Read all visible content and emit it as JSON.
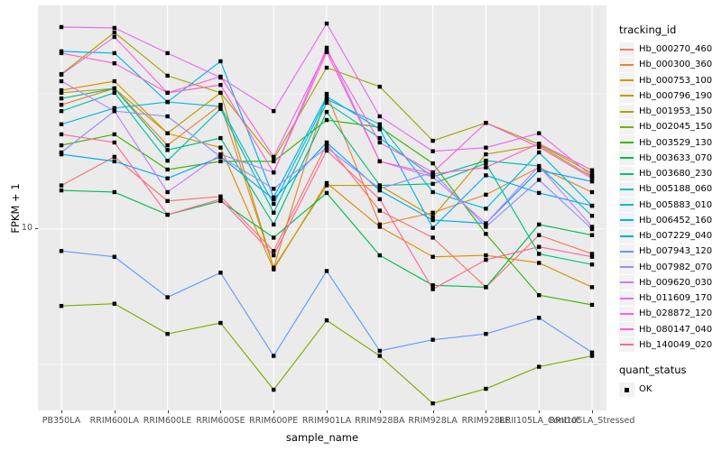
{
  "chart_data": {
    "type": "line",
    "title": "",
    "xlabel": "sample_name",
    "ylabel": "FPKM + 1",
    "y_scale": "log10",
    "y_ticks": [
      "10"
    ],
    "grid": true,
    "panel_background": "#EBEBEB",
    "gridline_color": "#FFFFFF",
    "point_shape": "filled-square",
    "point_color": "#000000",
    "legend": {
      "position": "right",
      "color_title": "tracking_id",
      "shape_title": "quant_status",
      "shape_items": [
        {
          "label": "OK"
        }
      ]
    },
    "categories": [
      "PB350LA",
      "RRIM600LA",
      "RRIM600LE",
      "RRIM600SE",
      "RRIM600PE",
      "RRIM901LA",
      "RRIM928BA",
      "RRIM928LA",
      "RRIM928LE",
      "RRII105LA_Control",
      "RRII105LA_Stressed"
    ],
    "series": [
      {
        "name": "Hb_000270_460",
        "color": "#F8766D",
        "values": [
          14.5,
          18.5,
          12.7,
          13.2,
          8.3,
          20.6,
          11.7,
          9.3,
          6.1,
          9.5,
          8.1
        ]
      },
      {
        "name": "Hb_000300_360",
        "color": "#EA8331",
        "values": [
          28.8,
          33.1,
          20.4,
          28.8,
          7.2,
          31.6,
          10.4,
          11.5,
          13.4,
          16.9,
          13.7
        ]
      },
      {
        "name": "Hb_000753_100",
        "color": "#D89000",
        "values": [
          32.6,
          35.2,
          22.6,
          20.0,
          7.1,
          14.8,
          10.2,
          7.9,
          8.0,
          7.5,
          6.1
        ]
      },
      {
        "name": "Hb_000796_190",
        "color": "#C09B00",
        "values": [
          31.9,
          33.1,
          22.6,
          31.9,
          7.2,
          14.5,
          14.5,
          11.1,
          18.9,
          20.4,
          15.6
        ]
      },
      {
        "name": "Hb_001953_150",
        "color": "#A3A500",
        "values": [
          37.4,
          53.3,
          36.9,
          31.9,
          18.1,
          39.5,
          33.6,
          21.2,
          24.7,
          20.6,
          16.1
        ]
      },
      {
        "name": "Hb_002045_150",
        "color": "#7CAE00",
        "values": [
          5.2,
          5.3,
          4.1,
          4.5,
          2.55,
          4.6,
          3.4,
          2.27,
          2.57,
          3.1,
          3.4
        ]
      },
      {
        "name": "Hb_003529_130",
        "color": "#39B600",
        "values": [
          20.4,
          22.4,
          16.6,
          17.8,
          17.8,
          25.3,
          23.8,
          17.5,
          9.6,
          5.7,
          5.25
        ]
      },
      {
        "name": "Hb_003633_070",
        "color": "#00BB4E",
        "values": [
          13.9,
          13.7,
          11.3,
          12.7,
          9.3,
          13.6,
          8.0,
          6.2,
          6.1,
          10.4,
          9.5
        ]
      },
      {
        "name": "Hb_003680_230",
        "color": "#00C081",
        "values": [
          30.4,
          33.1,
          19.6,
          21.7,
          10.4,
          27.1,
          14.5,
          14.7,
          17.5,
          8.1,
          7.4
        ]
      },
      {
        "name": "Hb_005188_060",
        "color": "#00C0AF",
        "values": [
          27.3,
          31.9,
          17.9,
          27.8,
          11.5,
          29.3,
          21.7,
          15.6,
          17.9,
          17.1,
          11.2
        ]
      },
      {
        "name": "Hb_005883_010",
        "color": "#00BCD8",
        "values": [
          24.4,
          28.0,
          29.5,
          28.4,
          12.4,
          30.2,
          24.4,
          13.7,
          11.9,
          19.2,
          12.2
        ]
      },
      {
        "name": "Hb_006452_160",
        "color": "#00B0F6",
        "values": [
          45.4,
          44.7,
          29.5,
          41.7,
          13.1,
          30.9,
          23.4,
          10.1,
          15.8,
          13.6,
          12.2
        ]
      },
      {
        "name": "Hb_007229_040",
        "color": "#00A5FF",
        "values": [
          18.9,
          17.8,
          15.4,
          18.5,
          12.9,
          20.9,
          13.9,
          10.8,
          10.5,
          16.5,
          15.0
        ]
      },
      {
        "name": "Hb_007943_120",
        "color": "#619CFF",
        "values": [
          8.3,
          7.9,
          5.6,
          6.9,
          3.4,
          7.0,
          3.55,
          3.9,
          4.1,
          4.7,
          3.5
        ]
      },
      {
        "name": "Hb_007982_070",
        "color": "#9590FF",
        "values": [
          19.2,
          27.3,
          26.1,
          18.5,
          14.1,
          20.0,
          14.1,
          16.2,
          10.2,
          15.2,
          10.0
        ]
      },
      {
        "name": "Hb_009620_030",
        "color": "#C77CFF",
        "values": [
          35.2,
          27.3,
          13.7,
          18.9,
          16.2,
          46.8,
          17.8,
          15.6,
          10.5,
          17.1,
          10.2
        ]
      },
      {
        "name": "Hb_011609_170",
        "color": "#E76BF3",
        "values": [
          55.8,
          55.4,
          44.7,
          36.3,
          27.3,
          57.5,
          26.1,
          19.4,
          20.0,
          22.6,
          15.7
        ]
      },
      {
        "name": "Hb_028872_120",
        "color": "#FA62DB",
        "values": [
          37.2,
          51.3,
          31.9,
          36.6,
          18.5,
          45.7,
          20.9,
          16.2,
          24.7,
          20.1,
          15.4
        ]
      },
      {
        "name": "Hb_080147_040",
        "color": "#FF61CC",
        "values": [
          44.7,
          41.0,
          31.9,
          34.1,
          16.2,
          45.1,
          17.8,
          16.0,
          16.9,
          20.7,
          16.5
        ]
      },
      {
        "name": "Hb_140049_020",
        "color": "#FF689E",
        "values": [
          22.4,
          20.9,
          11.3,
          12.9,
          8.0,
          19.5,
          12.9,
          6.0,
          7.7,
          8.6,
          7.9
        ]
      }
    ]
  }
}
